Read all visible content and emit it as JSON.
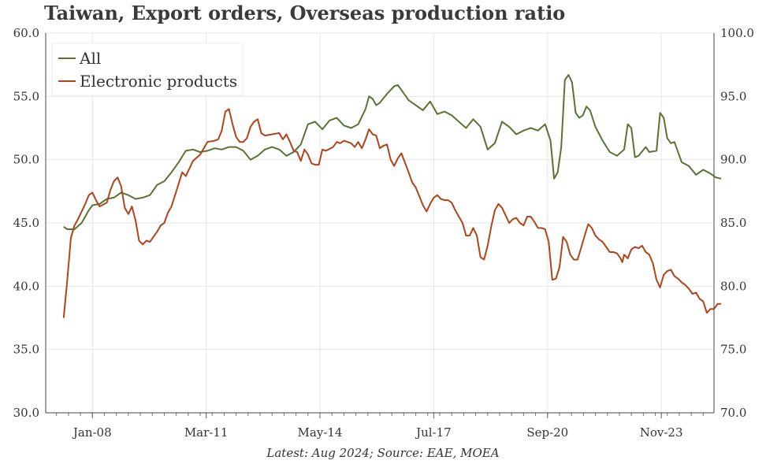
{
  "chart_data": {
    "type": "line",
    "title": "Taiwan, Export orders, Overseas production ratio",
    "source_note": "Latest: Aug 2024; Source: EAE, MOEA",
    "x_tick_labels": [
      "Jan-08",
      "Mar-11",
      "May-14",
      "Jul-17",
      "Sep-20",
      "Nov-23"
    ],
    "x_tick_values": [
      2008.0,
      2011.167,
      2014.333,
      2017.5,
      2020.667,
      2023.833
    ],
    "xlim": [
      2006.7,
      2025.3
    ],
    "left_axis": {
      "ylim": [
        30,
        60
      ],
      "ticks": [
        30,
        35,
        40,
        45,
        50,
        55,
        60
      ],
      "tick_labels": [
        "30.0",
        "35.0",
        "40.0",
        "45.0",
        "50.0",
        "55.0",
        "60.0"
      ]
    },
    "right_axis": {
      "ylim": [
        70,
        100
      ],
      "ticks": [
        70,
        75,
        80,
        85,
        90,
        95,
        100
      ],
      "tick_labels": [
        "70.0",
        "75.0",
        "80.0",
        "85.0",
        "90.0",
        "95.0",
        "100.0"
      ]
    },
    "legend_position": "top-left",
    "grid": true,
    "series": [
      {
        "name": "All",
        "axis": "left",
        "color": "#5a7233",
        "points": [
          [
            2007.2,
            44.7
          ],
          [
            2007.3,
            44.5
          ],
          [
            2007.5,
            44.5
          ],
          [
            2007.7,
            45.0
          ],
          [
            2007.9,
            46.0
          ],
          [
            2008.0,
            46.4
          ],
          [
            2008.2,
            46.5
          ],
          [
            2008.4,
            46.9
          ],
          [
            2008.6,
            47.0
          ],
          [
            2008.8,
            47.4
          ],
          [
            2009.0,
            47.2
          ],
          [
            2009.2,
            46.9
          ],
          [
            2009.4,
            47.0
          ],
          [
            2009.6,
            47.2
          ],
          [
            2009.8,
            48.0
          ],
          [
            2010.0,
            48.3
          ],
          [
            2010.2,
            49.0
          ],
          [
            2010.4,
            49.8
          ],
          [
            2010.6,
            50.7
          ],
          [
            2010.8,
            50.8
          ],
          [
            2011.0,
            50.6
          ],
          [
            2011.2,
            50.7
          ],
          [
            2011.4,
            50.9
          ],
          [
            2011.6,
            50.8
          ],
          [
            2011.8,
            51.0
          ],
          [
            2012.0,
            51.0
          ],
          [
            2012.2,
            50.7
          ],
          [
            2012.4,
            50.0
          ],
          [
            2012.6,
            50.3
          ],
          [
            2012.8,
            50.8
          ],
          [
            2013.0,
            51.0
          ],
          [
            2013.2,
            50.8
          ],
          [
            2013.4,
            50.3
          ],
          [
            2013.6,
            50.6
          ],
          [
            2013.8,
            51.2
          ],
          [
            2014.0,
            52.8
          ],
          [
            2014.2,
            53.0
          ],
          [
            2014.4,
            52.4
          ],
          [
            2014.6,
            53.1
          ],
          [
            2014.8,
            53.3
          ],
          [
            2015.0,
            52.7
          ],
          [
            2015.2,
            52.5
          ],
          [
            2015.4,
            52.8
          ],
          [
            2015.6,
            54.0
          ],
          [
            2015.7,
            55.0
          ],
          [
            2015.8,
            54.8
          ],
          [
            2015.9,
            54.3
          ],
          [
            2016.0,
            54.5
          ],
          [
            2016.2,
            55.2
          ],
          [
            2016.4,
            55.8
          ],
          [
            2016.5,
            55.9
          ],
          [
            2016.6,
            55.5
          ],
          [
            2016.8,
            54.7
          ],
          [
            2017.0,
            54.3
          ],
          [
            2017.2,
            53.9
          ],
          [
            2017.4,
            54.6
          ],
          [
            2017.6,
            53.6
          ],
          [
            2017.8,
            53.8
          ],
          [
            2018.0,
            53.5
          ],
          [
            2018.2,
            53.0
          ],
          [
            2018.4,
            52.5
          ],
          [
            2018.6,
            53.2
          ],
          [
            2018.8,
            52.6
          ],
          [
            2019.0,
            50.8
          ],
          [
            2019.2,
            51.3
          ],
          [
            2019.4,
            53.0
          ],
          [
            2019.6,
            52.6
          ],
          [
            2019.8,
            52.0
          ],
          [
            2020.0,
            52.3
          ],
          [
            2020.2,
            52.5
          ],
          [
            2020.4,
            52.3
          ],
          [
            2020.6,
            52.8
          ],
          [
            2020.75,
            51.5
          ],
          [
            2020.85,
            48.5
          ],
          [
            2020.95,
            49.0
          ],
          [
            2021.05,
            51.0
          ],
          [
            2021.15,
            56.3
          ],
          [
            2021.25,
            56.7
          ],
          [
            2021.35,
            56.1
          ],
          [
            2021.45,
            53.7
          ],
          [
            2021.55,
            53.3
          ],
          [
            2021.65,
            53.5
          ],
          [
            2021.75,
            54.2
          ],
          [
            2021.85,
            53.9
          ],
          [
            2022.0,
            52.6
          ],
          [
            2022.2,
            51.5
          ],
          [
            2022.4,
            50.6
          ],
          [
            2022.6,
            50.3
          ],
          [
            2022.8,
            50.8
          ],
          [
            2022.9,
            52.8
          ],
          [
            2023.0,
            52.5
          ],
          [
            2023.1,
            50.2
          ],
          [
            2023.2,
            50.3
          ],
          [
            2023.4,
            51.0
          ],
          [
            2023.5,
            50.6
          ],
          [
            2023.7,
            50.7
          ],
          [
            2023.8,
            53.7
          ],
          [
            2023.9,
            53.3
          ],
          [
            2024.0,
            51.7
          ],
          [
            2024.1,
            51.3
          ],
          [
            2024.2,
            51.4
          ],
          [
            2024.4,
            49.8
          ],
          [
            2024.6,
            49.5
          ],
          [
            2024.8,
            48.8
          ],
          [
            2025.0,
            49.2
          ],
          [
            2025.2,
            48.9
          ],
          [
            2025.35,
            48.6
          ],
          [
            2025.5,
            48.5
          ]
        ]
      },
      {
        "name": "Electronic products",
        "axis": "right",
        "color": "#b0441a",
        "points": [
          [
            2007.2,
            77.5
          ],
          [
            2007.3,
            80.5
          ],
          [
            2007.4,
            83.8
          ],
          [
            2007.5,
            84.8
          ],
          [
            2007.6,
            85.3
          ],
          [
            2007.8,
            86.5
          ],
          [
            2007.9,
            87.2
          ],
          [
            2008.0,
            87.4
          ],
          [
            2008.1,
            86.8
          ],
          [
            2008.2,
            86.3
          ],
          [
            2008.4,
            86.6
          ],
          [
            2008.5,
            87.6
          ],
          [
            2008.6,
            88.3
          ],
          [
            2008.7,
            88.6
          ],
          [
            2008.8,
            87.9
          ],
          [
            2008.9,
            86.2
          ],
          [
            2009.0,
            85.7
          ],
          [
            2009.1,
            86.3
          ],
          [
            2009.2,
            85.2
          ],
          [
            2009.3,
            83.6
          ],
          [
            2009.4,
            83.3
          ],
          [
            2009.5,
            83.6
          ],
          [
            2009.6,
            83.5
          ],
          [
            2009.8,
            84.3
          ],
          [
            2009.9,
            84.8
          ],
          [
            2010.0,
            85.0
          ],
          [
            2010.1,
            85.8
          ],
          [
            2010.2,
            86.3
          ],
          [
            2010.4,
            88.1
          ],
          [
            2010.5,
            89.0
          ],
          [
            2010.6,
            88.7
          ],
          [
            2010.8,
            89.9
          ],
          [
            2011.0,
            90.4
          ],
          [
            2011.2,
            91.4
          ],
          [
            2011.4,
            91.5
          ],
          [
            2011.5,
            91.6
          ],
          [
            2011.6,
            92.3
          ],
          [
            2011.7,
            93.8
          ],
          [
            2011.8,
            94.0
          ],
          [
            2011.9,
            92.8
          ],
          [
            2012.0,
            91.8
          ],
          [
            2012.1,
            91.4
          ],
          [
            2012.2,
            91.4
          ],
          [
            2012.3,
            91.7
          ],
          [
            2012.4,
            92.6
          ],
          [
            2012.5,
            93.0
          ],
          [
            2012.6,
            93.2
          ],
          [
            2012.7,
            92.1
          ],
          [
            2012.8,
            91.9
          ],
          [
            2013.0,
            92.0
          ],
          [
            2013.2,
            92.1
          ],
          [
            2013.3,
            91.6
          ],
          [
            2013.4,
            92.0
          ],
          [
            2013.5,
            91.4
          ],
          [
            2013.6,
            90.7
          ],
          [
            2013.7,
            90.6
          ],
          [
            2013.8,
            89.9
          ],
          [
            2013.9,
            90.8
          ],
          [
            2014.0,
            90.4
          ],
          [
            2014.1,
            89.7
          ],
          [
            2014.2,
            89.6
          ],
          [
            2014.3,
            89.6
          ],
          [
            2014.4,
            90.8
          ],
          [
            2014.5,
            90.7
          ],
          [
            2014.7,
            91.0
          ],
          [
            2014.8,
            91.4
          ],
          [
            2014.9,
            91.3
          ],
          [
            2015.0,
            91.5
          ],
          [
            2015.2,
            91.3
          ],
          [
            2015.3,
            91.0
          ],
          [
            2015.4,
            91.4
          ],
          [
            2015.5,
            90.9
          ],
          [
            2015.6,
            91.6
          ],
          [
            2015.7,
            92.4
          ],
          [
            2015.8,
            92.0
          ],
          [
            2015.9,
            91.9
          ],
          [
            2016.0,
            90.9
          ],
          [
            2016.1,
            91.1
          ],
          [
            2016.2,
            91.2
          ],
          [
            2016.3,
            90.0
          ],
          [
            2016.4,
            89.5
          ],
          [
            2016.5,
            90.1
          ],
          [
            2016.6,
            90.5
          ],
          [
            2016.8,
            89.0
          ],
          [
            2016.9,
            88.2
          ],
          [
            2017.0,
            87.8
          ],
          [
            2017.1,
            87.1
          ],
          [
            2017.2,
            86.4
          ],
          [
            2017.3,
            85.9
          ],
          [
            2017.4,
            86.5
          ],
          [
            2017.5,
            87.0
          ],
          [
            2017.6,
            87.2
          ],
          [
            2017.7,
            86.9
          ],
          [
            2017.8,
            86.8
          ],
          [
            2017.9,
            86.8
          ],
          [
            2018.0,
            86.6
          ],
          [
            2018.1,
            86.0
          ],
          [
            2018.2,
            85.5
          ],
          [
            2018.3,
            85.0
          ],
          [
            2018.4,
            84.0
          ],
          [
            2018.5,
            84.0
          ],
          [
            2018.6,
            84.6
          ],
          [
            2018.7,
            84.0
          ],
          [
            2018.8,
            82.3
          ],
          [
            2018.9,
            82.1
          ],
          [
            2019.0,
            83.2
          ],
          [
            2019.1,
            84.7
          ],
          [
            2019.2,
            86.0
          ],
          [
            2019.3,
            86.5
          ],
          [
            2019.4,
            86.2
          ],
          [
            2019.5,
            85.6
          ],
          [
            2019.6,
            85.0
          ],
          [
            2019.7,
            85.3
          ],
          [
            2019.8,
            85.4
          ],
          [
            2019.9,
            85.0
          ],
          [
            2020.0,
            84.8
          ],
          [
            2020.1,
            85.5
          ],
          [
            2020.2,
            85.5
          ],
          [
            2020.3,
            85.1
          ],
          [
            2020.4,
            84.6
          ],
          [
            2020.5,
            84.6
          ],
          [
            2020.6,
            84.5
          ],
          [
            2020.7,
            83.5
          ],
          [
            2020.8,
            80.5
          ],
          [
            2020.9,
            80.6
          ],
          [
            2021.0,
            81.5
          ],
          [
            2021.1,
            83.9
          ],
          [
            2021.2,
            83.5
          ],
          [
            2021.3,
            82.5
          ],
          [
            2021.4,
            82.1
          ],
          [
            2021.5,
            82.1
          ],
          [
            2021.6,
            83.0
          ],
          [
            2021.7,
            84.0
          ],
          [
            2021.8,
            84.9
          ],
          [
            2021.9,
            84.6
          ],
          [
            2022.0,
            84.0
          ],
          [
            2022.1,
            83.7
          ],
          [
            2022.2,
            83.5
          ],
          [
            2022.3,
            83.1
          ],
          [
            2022.4,
            82.7
          ],
          [
            2022.5,
            82.7
          ],
          [
            2022.6,
            82.6
          ],
          [
            2022.7,
            82.2
          ],
          [
            2022.75,
            81.9
          ],
          [
            2022.8,
            82.5
          ],
          [
            2022.9,
            82.2
          ],
          [
            2023.0,
            82.9
          ],
          [
            2023.1,
            83.1
          ],
          [
            2023.2,
            83.0
          ],
          [
            2023.3,
            83.2
          ],
          [
            2023.4,
            82.7
          ],
          [
            2023.5,
            82.5
          ],
          [
            2023.6,
            81.8
          ],
          [
            2023.7,
            80.5
          ],
          [
            2023.8,
            79.9
          ],
          [
            2023.9,
            80.9
          ],
          [
            2024.0,
            81.2
          ],
          [
            2024.1,
            81.3
          ],
          [
            2024.2,
            80.8
          ],
          [
            2024.3,
            80.6
          ],
          [
            2024.4,
            80.3
          ],
          [
            2024.5,
            80.1
          ],
          [
            2024.6,
            79.8
          ],
          [
            2024.7,
            79.4
          ],
          [
            2024.8,
            79.5
          ],
          [
            2024.9,
            79.0
          ],
          [
            2025.0,
            78.8
          ],
          [
            2025.1,
            77.9
          ],
          [
            2025.2,
            78.2
          ],
          [
            2025.3,
            78.2
          ],
          [
            2025.4,
            78.6
          ],
          [
            2025.5,
            78.6
          ]
        ]
      }
    ]
  }
}
